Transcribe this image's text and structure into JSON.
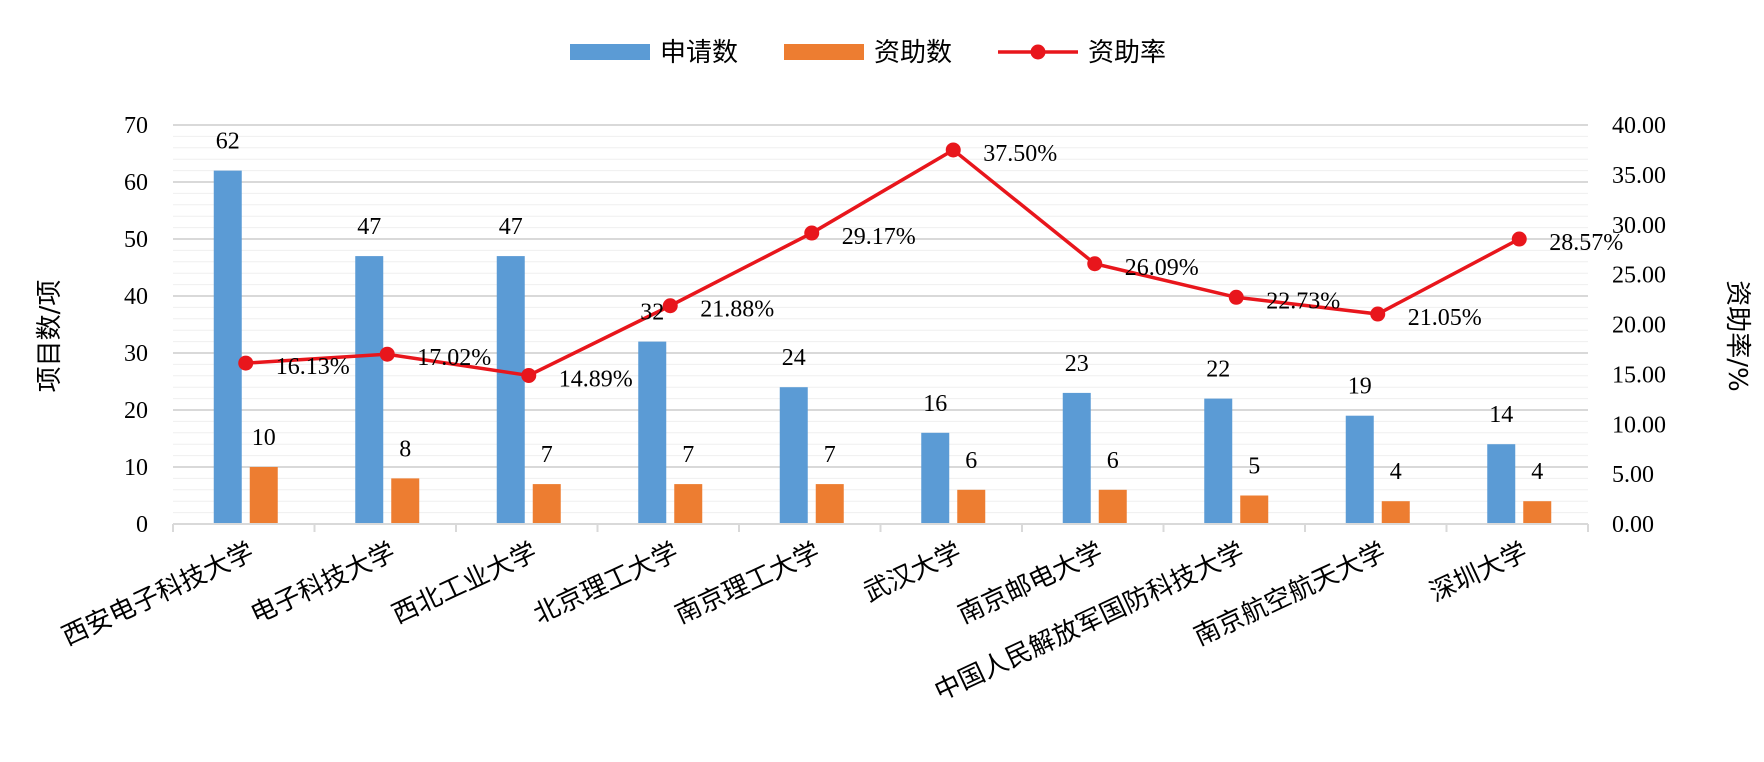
{
  "chart_data": {
    "type": "bar",
    "categories": [
      "西安电子科技大学",
      "电子科技大学",
      "西北工业大学",
      "北京理工大学",
      "南京理工大学",
      "武汉大学",
      "南京邮电大学",
      "中国人民解放军国防科技大学",
      "南京航空航天大学",
      "深圳大学"
    ],
    "series": [
      {
        "name": "申请数",
        "type": "bar",
        "axis": "left",
        "color": "#5B9BD5",
        "values": [
          62,
          47,
          47,
          32,
          24,
          16,
          23,
          22,
          19,
          14
        ],
        "labels": [
          "62",
          "47",
          "47",
          "32",
          "24",
          "16",
          "23",
          "22",
          "19",
          "14"
        ]
      },
      {
        "name": "资助数",
        "type": "bar",
        "axis": "left",
        "color": "#ED7D31",
        "values": [
          10,
          8,
          7,
          7,
          7,
          6,
          6,
          5,
          4,
          4
        ],
        "labels": [
          "10",
          "8",
          "7",
          "7",
          "7",
          "6",
          "6",
          "5",
          "4",
          "4"
        ]
      },
      {
        "name": "资助率",
        "type": "line",
        "axis": "right",
        "color": "#E8161C",
        "values": [
          16.13,
          17.02,
          14.89,
          21.88,
          29.17,
          37.5,
          26.09,
          22.73,
          21.05,
          28.57
        ],
        "labels": [
          "16.13%",
          "17.02%",
          "14.89%",
          "21.88%",
          "29.17%",
          "37.50%",
          "26.09%",
          "22.73%",
          "21.05%",
          "28.57%"
        ]
      }
    ],
    "ylabel": "项目数/项",
    "y2label": "资助率/%",
    "ylim": [
      0,
      70
    ],
    "y2lim": [
      0,
      40
    ],
    "yticks": [
      "0",
      "10",
      "20",
      "30",
      "40",
      "50",
      "60",
      "70"
    ],
    "y2ticks": [
      "0.00",
      "5.00",
      "10.00",
      "15.00",
      "20.00",
      "25.00",
      "30.00",
      "35.00",
      "40.00"
    ],
    "legend_position": "top-center",
    "grid": true
  }
}
